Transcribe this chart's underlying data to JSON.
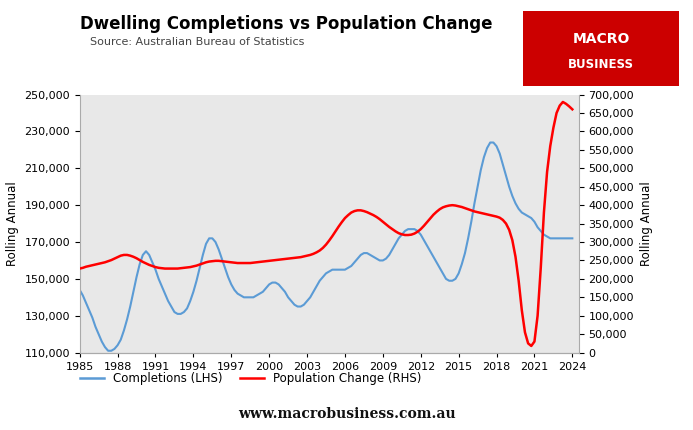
{
  "title": "Dwelling Completions vs Population Change",
  "source": "Source: Australian Bureau of Statistics",
  "ylabel_left": "Rolling Annual",
  "ylabel_right": "Rolling Annual",
  "website": "www.macrobusiness.com.au",
  "plot_bg_color": "#e8e8e8",
  "fig_bg_color": "#ffffff",
  "lhs_color": "#5b9bd5",
  "rhs_color": "#ff0000",
  "lhs_ylim": [
    110000,
    250000
  ],
  "rhs_ylim": [
    0,
    700000
  ],
  "lhs_yticks": [
    110000,
    130000,
    150000,
    170000,
    190000,
    210000,
    230000,
    250000
  ],
  "rhs_yticks": [
    0,
    50000,
    100000,
    150000,
    200000,
    250000,
    300000,
    350000,
    400000,
    450000,
    500000,
    550000,
    600000,
    650000,
    700000
  ],
  "xticks": [
    1985,
    1988,
    1991,
    1994,
    1997,
    2000,
    2003,
    2006,
    2009,
    2012,
    2015,
    2018,
    2021,
    2024
  ],
  "xlim": [
    1985,
    2024.5
  ],
  "legend_lhs": "Completions (LHS)",
  "legend_rhs": "Population Change (RHS)",
  "macro_logo_color": "#cc0000",
  "logo_text1": "MACRO",
  "logo_text2": "BUSINESS",
  "completions_x": [
    1985.0,
    1985.25,
    1985.5,
    1985.75,
    1986.0,
    1986.25,
    1986.5,
    1986.75,
    1987.0,
    1987.25,
    1987.5,
    1987.75,
    1988.0,
    1988.25,
    1988.5,
    1988.75,
    1989.0,
    1989.25,
    1989.5,
    1989.75,
    1990.0,
    1990.25,
    1990.5,
    1990.75,
    1991.0,
    1991.25,
    1991.5,
    1991.75,
    1992.0,
    1992.25,
    1992.5,
    1992.75,
    1993.0,
    1993.25,
    1993.5,
    1993.75,
    1994.0,
    1994.25,
    1994.5,
    1994.75,
    1995.0,
    1995.25,
    1995.5,
    1995.75,
    1996.0,
    1996.25,
    1996.5,
    1996.75,
    1997.0,
    1997.25,
    1997.5,
    1997.75,
    1998.0,
    1998.25,
    1998.5,
    1998.75,
    1999.0,
    1999.25,
    1999.5,
    1999.75,
    2000.0,
    2000.25,
    2000.5,
    2000.75,
    2001.0,
    2001.25,
    2001.5,
    2001.75,
    2002.0,
    2002.25,
    2002.5,
    2002.75,
    2003.0,
    2003.25,
    2003.5,
    2003.75,
    2004.0,
    2004.25,
    2004.5,
    2004.75,
    2005.0,
    2005.25,
    2005.5,
    2005.75,
    2006.0,
    2006.25,
    2006.5,
    2006.75,
    2007.0,
    2007.25,
    2007.5,
    2007.75,
    2008.0,
    2008.25,
    2008.5,
    2008.75,
    2009.0,
    2009.25,
    2009.5,
    2009.75,
    2010.0,
    2010.25,
    2010.5,
    2010.75,
    2011.0,
    2011.25,
    2011.5,
    2011.75,
    2012.0,
    2012.25,
    2012.5,
    2012.75,
    2013.0,
    2013.25,
    2013.5,
    2013.75,
    2014.0,
    2014.25,
    2014.5,
    2014.75,
    2015.0,
    2015.25,
    2015.5,
    2015.75,
    2016.0,
    2016.25,
    2016.5,
    2016.75,
    2017.0,
    2017.25,
    2017.5,
    2017.75,
    2018.0,
    2018.25,
    2018.5,
    2018.75,
    2019.0,
    2019.25,
    2019.5,
    2019.75,
    2020.0,
    2020.25,
    2020.5,
    2020.75,
    2021.0,
    2021.25,
    2021.5,
    2021.75,
    2022.0,
    2022.25,
    2022.5,
    2022.75,
    2023.0,
    2023.25,
    2023.5,
    2023.75,
    2024.0
  ],
  "completions_y": [
    144000,
    141000,
    137000,
    133000,
    129000,
    124000,
    120000,
    116000,
    113000,
    111000,
    111000,
    112000,
    114000,
    117000,
    122000,
    128000,
    135000,
    143000,
    151000,
    158000,
    163000,
    165000,
    163000,
    159000,
    155000,
    150000,
    146000,
    142000,
    138000,
    135000,
    132000,
    131000,
    131000,
    132000,
    134000,
    138000,
    143000,
    149000,
    156000,
    163000,
    169000,
    172000,
    172000,
    170000,
    166000,
    161000,
    156000,
    151000,
    147000,
    144000,
    142000,
    141000,
    140000,
    140000,
    140000,
    140000,
    141000,
    142000,
    143000,
    145000,
    147000,
    148000,
    148000,
    147000,
    145000,
    143000,
    140000,
    138000,
    136000,
    135000,
    135000,
    136000,
    138000,
    140000,
    143000,
    146000,
    149000,
    151000,
    153000,
    154000,
    155000,
    155000,
    155000,
    155000,
    155000,
    156000,
    157000,
    159000,
    161000,
    163000,
    164000,
    164000,
    163000,
    162000,
    161000,
    160000,
    160000,
    161000,
    163000,
    166000,
    169000,
    172000,
    174000,
    176000,
    177000,
    177000,
    177000,
    176000,
    174000,
    171000,
    168000,
    165000,
    162000,
    159000,
    156000,
    153000,
    150000,
    149000,
    149000,
    150000,
    153000,
    158000,
    164000,
    172000,
    181000,
    191000,
    200000,
    209000,
    216000,
    221000,
    224000,
    224000,
    222000,
    218000,
    212000,
    206000,
    200000,
    195000,
    191000,
    188000,
    186000,
    185000,
    184000,
    183000,
    181000,
    178000,
    176000,
    174000,
    173000,
    172000,
    172000,
    172000,
    172000,
    172000,
    172000,
    172000,
    172000
  ],
  "population_x": [
    1985.0,
    1985.25,
    1985.5,
    1985.75,
    1986.0,
    1986.25,
    1986.5,
    1986.75,
    1987.0,
    1987.25,
    1987.5,
    1987.75,
    1988.0,
    1988.25,
    1988.5,
    1988.75,
    1989.0,
    1989.25,
    1989.5,
    1989.75,
    1990.0,
    1990.25,
    1990.5,
    1990.75,
    1991.0,
    1991.25,
    1991.5,
    1991.75,
    1992.0,
    1992.25,
    1992.5,
    1992.75,
    1993.0,
    1993.25,
    1993.5,
    1993.75,
    1994.0,
    1994.25,
    1994.5,
    1994.75,
    1995.0,
    1995.25,
    1995.5,
    1995.75,
    1996.0,
    1996.25,
    1996.5,
    1996.75,
    1997.0,
    1997.25,
    1997.5,
    1997.75,
    1998.0,
    1998.25,
    1998.5,
    1998.75,
    1999.0,
    1999.25,
    1999.5,
    1999.75,
    2000.0,
    2000.25,
    2000.5,
    2000.75,
    2001.0,
    2001.25,
    2001.5,
    2001.75,
    2002.0,
    2002.25,
    2002.5,
    2002.75,
    2003.0,
    2003.25,
    2003.5,
    2003.75,
    2004.0,
    2004.25,
    2004.5,
    2004.75,
    2005.0,
    2005.25,
    2005.5,
    2005.75,
    2006.0,
    2006.25,
    2006.5,
    2006.75,
    2007.0,
    2007.25,
    2007.5,
    2007.75,
    2008.0,
    2008.25,
    2008.5,
    2008.75,
    2009.0,
    2009.25,
    2009.5,
    2009.75,
    2010.0,
    2010.25,
    2010.5,
    2010.75,
    2011.0,
    2011.25,
    2011.5,
    2011.75,
    2012.0,
    2012.25,
    2012.5,
    2012.75,
    2013.0,
    2013.25,
    2013.5,
    2013.75,
    2014.0,
    2014.25,
    2014.5,
    2014.75,
    2015.0,
    2015.25,
    2015.5,
    2015.75,
    2016.0,
    2016.25,
    2016.5,
    2016.75,
    2017.0,
    2017.25,
    2017.5,
    2017.75,
    2018.0,
    2018.25,
    2018.5,
    2018.75,
    2019.0,
    2019.25,
    2019.5,
    2019.75,
    2020.0,
    2020.25,
    2020.5,
    2020.75,
    2021.0,
    2021.25,
    2021.5,
    2021.75,
    2022.0,
    2022.25,
    2022.5,
    2022.75,
    2023.0,
    2023.25,
    2023.5,
    2023.75,
    2024.0
  ],
  "population_y": [
    228000,
    230000,
    233000,
    235000,
    237000,
    239000,
    241000,
    243000,
    245000,
    248000,
    251000,
    255000,
    259000,
    263000,
    265000,
    265000,
    263000,
    260000,
    256000,
    251000,
    246000,
    242000,
    238000,
    235000,
    232000,
    230000,
    229000,
    228000,
    228000,
    228000,
    228000,
    228000,
    229000,
    230000,
    231000,
    232000,
    234000,
    236000,
    239000,
    242000,
    245000,
    247000,
    248000,
    249000,
    249000,
    248000,
    247000,
    246000,
    245000,
    244000,
    243000,
    243000,
    243000,
    243000,
    243000,
    244000,
    245000,
    246000,
    247000,
    248000,
    249000,
    250000,
    251000,
    252000,
    253000,
    254000,
    255000,
    256000,
    257000,
    258000,
    259000,
    261000,
    263000,
    265000,
    268000,
    272000,
    277000,
    284000,
    293000,
    304000,
    316000,
    329000,
    342000,
    354000,
    365000,
    373000,
    380000,
    384000,
    386000,
    386000,
    384000,
    381000,
    377000,
    373000,
    368000,
    362000,
    355000,
    348000,
    341000,
    335000,
    329000,
    324000,
    321000,
    319000,
    319000,
    320000,
    323000,
    328000,
    335000,
    344000,
    354000,
    364000,
    374000,
    382000,
    389000,
    394000,
    397000,
    399000,
    400000,
    399000,
    397000,
    395000,
    392000,
    389000,
    386000,
    383000,
    381000,
    379000,
    377000,
    375000,
    373000,
    371000,
    369000,
    366000,
    360000,
    350000,
    333000,
    305000,
    260000,
    195000,
    115000,
    55000,
    25000,
    18000,
    30000,
    100000,
    230000,
    380000,
    490000,
    560000,
    610000,
    650000,
    670000,
    680000,
    675000,
    668000,
    660000
  ]
}
